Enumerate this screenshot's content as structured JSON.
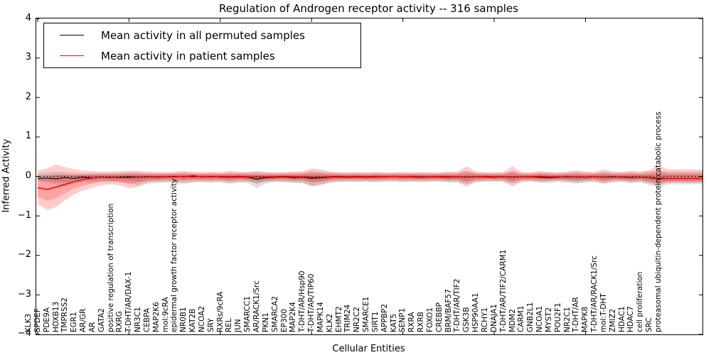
{
  "title": "Regulation of Androgen receptor activity -- 316 samples",
  "legend": {
    "items": [
      {
        "label": "Mean activity in all permuted samples",
        "color": "#000000"
      },
      {
        "label": "Mean activity in patient samples",
        "color": "#ff0000"
      }
    ]
  },
  "chart_data": {
    "type": "line",
    "title": "Regulation of Androgen receptor activity -- 316 samples",
    "xlabel": "Cellular Entities",
    "ylabel": "Inferred Activity",
    "ylim": [
      -4,
      4
    ],
    "yticks": [
      4,
      3,
      2,
      1,
      0,
      -1,
      -2,
      -3,
      -4
    ],
    "grid": false,
    "zero_line_style": "dotted",
    "legend_position": "upper left",
    "colors": {
      "permuted": "#000000",
      "patient": "#ff0000",
      "permuted_band": "rgba(0,0,0,0.12)",
      "patient_band": "rgba(255,0,0,0.20)"
    },
    "categories": [
      "KLK3",
      "SPDEF",
      "PDE9A",
      "HOXB13",
      "TMPRSS2",
      "EGR1",
      "AR/GR",
      "AR",
      "GATA2",
      "positive regulation of transcription",
      "RXRG",
      "T-DHT/AR/DAX-1",
      "NR3C1",
      "CEBPA",
      "MAP2K6",
      "mol:9cRA",
      "epidermal growth factor receptor activity",
      "NR0B1",
      "KAT2B",
      "NCOA2",
      "SRY",
      "RXRs/9cRA",
      "REL",
      "JUN",
      "SMARCC1",
      "AR/RACK1/Src",
      "PKN1",
      "SMARCA2",
      "EP300",
      "MAP2K4",
      "T-DHT/AR/Hsp90",
      "T-DHT/AR/TIP60",
      "MAPK14",
      "KLK2",
      "EHMT2",
      "TRIM24",
      "NR2C2",
      "SMARCE1",
      "SIRT1",
      "APPBP2",
      "KAT5",
      "SENP1",
      "RXRA",
      "RXRB",
      "FOXO1",
      "CREBBP",
      "BRM/BAF57",
      "T-DHT/AR/TIF2",
      "GSK3B",
      "HSP90AA1",
      "RCHY1",
      "DNAJA1",
      "T-DHT/AR/TIF2/CARM1",
      "MDM2",
      "CARM1",
      "GNB2L1",
      "NCOA1",
      "MYST2",
      "POU2F1",
      "NR2C1",
      "T-DHT/AR",
      "MAPK8",
      "T-DHT/AR/RACK1/Src",
      "mol:T-DHT",
      "ZMIZ2",
      "HDAC1",
      "HDAC7",
      "cell proliferation",
      "SRC",
      "proteasomal ubiquitin-dependent protein catabolic process"
    ],
    "series": [
      {
        "name": "Mean activity in all permuted samples",
        "color": "#000000",
        "values": [
          -0.05,
          -0.04,
          -0.06,
          -0.03,
          -0.05,
          -0.02,
          -0.04,
          -0.02,
          -0.03,
          -0.02,
          -0.01,
          -0.02,
          -0.01,
          -0.02,
          -0.01,
          0,
          -0.01,
          0.01,
          -0.01,
          0,
          -0.01,
          -0.02,
          -0.01,
          -0.02,
          -0.07,
          -0.03,
          -0.02,
          -0.01,
          -0.03,
          -0.02,
          -0.05,
          -0.04,
          -0.02,
          -0.01,
          -0.02,
          -0.01,
          -0.02,
          -0.01,
          -0.01,
          0,
          -0.01,
          -0.01,
          -0.02,
          -0.01,
          -0.01,
          -0.02,
          -0.01,
          -0.02,
          -0.01,
          -0.01,
          -0.02,
          -0.01,
          -0.02,
          -0.01,
          -0.01,
          -0.02,
          -0.03,
          -0.02,
          -0.01,
          -0.02,
          -0.02,
          -0.01,
          -0.02,
          -0.01,
          -0.02,
          -0.03,
          -0.02,
          -0.04,
          -0.06,
          -0.05
        ]
      },
      {
        "name": "Mean activity in patient samples",
        "color": "#ff0000",
        "values": [
          -0.28,
          -0.33,
          -0.27,
          -0.2,
          -0.13,
          -0.08,
          -0.04,
          -0.02,
          -0.02,
          -0.03,
          -0.03,
          -0.02,
          -0.02,
          -0.01,
          -0.01,
          -0.01,
          0,
          -0.01,
          0,
          -0.01,
          0,
          -0.01,
          0,
          -0.01,
          -0.02,
          -0.01,
          -0.01,
          0,
          -0.01,
          -0.01,
          -0.02,
          -0.02,
          -0.01,
          0,
          -0.01,
          0,
          -0.01,
          0,
          -0.01,
          0,
          -0.01,
          0,
          -0.01,
          -0.01,
          0,
          -0.01,
          -0.01,
          -0.02,
          -0.01,
          0,
          -0.01,
          -0.01,
          -0.02,
          -0.01,
          -0.01,
          0,
          -0.01,
          -0.01,
          -0.02,
          -0.01,
          -0.02,
          -0.01,
          -0.02,
          -0.02,
          -0.01,
          -0.02,
          -0.02,
          -0.03,
          -0.04,
          -0.05
        ]
      }
    ],
    "bands": [
      {
        "name": "permuted-samples-range",
        "color": "rgba(0,0,0,0.12)",
        "upper": [
          0.08,
          0.1,
          0.12,
          0.1,
          0.09,
          0.08,
          0.09,
          0.08,
          0.09,
          0.1,
          0.11,
          0.1,
          0.09,
          0.09,
          0.08,
          0.09,
          0.1,
          0.09,
          0.08,
          0.09,
          0.08,
          0.1,
          0.09,
          0.1,
          0.14,
          0.1,
          0.09,
          0.09,
          0.1,
          0.1,
          0.13,
          0.12,
          0.1,
          0.09,
          0.09,
          0.09,
          0.09,
          0.1,
          0.09,
          0.09,
          0.09,
          0.09,
          0.09,
          0.09,
          0.09,
          0.1,
          0.1,
          0.13,
          0.1,
          0.09,
          0.09,
          0.09,
          0.12,
          0.09,
          0.09,
          0.1,
          0.1,
          0.09,
          0.1,
          0.11,
          0.1,
          0.09,
          0.12,
          0.1,
          0.1,
          0.11,
          0.1,
          0.13,
          0.15,
          0.12
        ],
        "lower": [
          -0.12,
          -0.15,
          -0.2,
          -0.25,
          -0.18,
          -0.14,
          -0.15,
          -0.13,
          -0.14,
          -0.15,
          -0.18,
          -0.22,
          -0.15,
          -0.14,
          -0.13,
          -0.14,
          -0.16,
          -0.14,
          -0.13,
          -0.14,
          -0.13,
          -0.16,
          -0.14,
          -0.16,
          -0.3,
          -0.18,
          -0.14,
          -0.14,
          -0.16,
          -0.16,
          -0.24,
          -0.2,
          -0.16,
          -0.14,
          -0.13,
          -0.14,
          -0.14,
          -0.15,
          -0.13,
          -0.13,
          -0.14,
          -0.13,
          -0.14,
          -0.13,
          -0.13,
          -0.15,
          -0.15,
          -0.2,
          -0.15,
          -0.13,
          -0.13,
          -0.14,
          -0.18,
          -0.14,
          -0.13,
          -0.16,
          -0.17,
          -0.14,
          -0.16,
          -0.18,
          -0.15,
          -0.14,
          -0.18,
          -0.15,
          -0.14,
          -0.17,
          -0.15,
          -0.22,
          -0.28,
          -0.2
        ]
      },
      {
        "name": "patient-samples-range",
        "color": "rgba(255,0,0,0.20)",
        "upper": [
          0.15,
          0.2,
          0.3,
          0.24,
          0.18,
          0.15,
          0.13,
          0.12,
          0.12,
          0.13,
          0.15,
          0.14,
          0.12,
          0.12,
          0.11,
          0.12,
          0.14,
          0.12,
          0.11,
          0.12,
          0.11,
          0.14,
          0.12,
          0.11,
          0.12,
          0.11,
          0.1,
          0.11,
          0.12,
          0.13,
          0.2,
          0.18,
          0.12,
          0.11,
          0.1,
          0.11,
          0.1,
          0.11,
          0.1,
          0.1,
          0.11,
          0.1,
          0.11,
          0.1,
          0.1,
          0.12,
          0.12,
          0.26,
          0.12,
          0.1,
          0.1,
          0.11,
          0.26,
          0.11,
          0.1,
          0.14,
          0.11,
          0.1,
          0.12,
          0.16,
          0.12,
          0.11,
          0.18,
          0.12,
          0.11,
          0.14,
          0.12,
          0.16,
          0.28,
          0.18
        ],
        "lower": [
          -0.7,
          -0.85,
          -0.78,
          -0.6,
          -0.45,
          -0.35,
          -0.28,
          -0.22,
          -0.2,
          -0.22,
          -0.3,
          -0.26,
          -0.18,
          -0.16,
          -0.15,
          -0.16,
          -0.18,
          -0.15,
          -0.14,
          -0.15,
          -0.14,
          -0.18,
          -0.15,
          -0.14,
          -0.16,
          -0.14,
          -0.13,
          -0.14,
          -0.15,
          -0.16,
          -0.25,
          -0.22,
          -0.15,
          -0.13,
          -0.12,
          -0.13,
          -0.12,
          -0.13,
          -0.12,
          -0.12,
          -0.13,
          -0.12,
          -0.13,
          -0.12,
          -0.12,
          -0.14,
          -0.14,
          -0.26,
          -0.13,
          -0.12,
          -0.12,
          -0.12,
          -0.26,
          -0.12,
          -0.11,
          -0.14,
          -0.12,
          -0.11,
          -0.13,
          -0.16,
          -0.13,
          -0.12,
          -0.18,
          -0.13,
          -0.12,
          -0.15,
          -0.13,
          -0.17,
          -0.22,
          -0.16
        ]
      }
    ]
  }
}
